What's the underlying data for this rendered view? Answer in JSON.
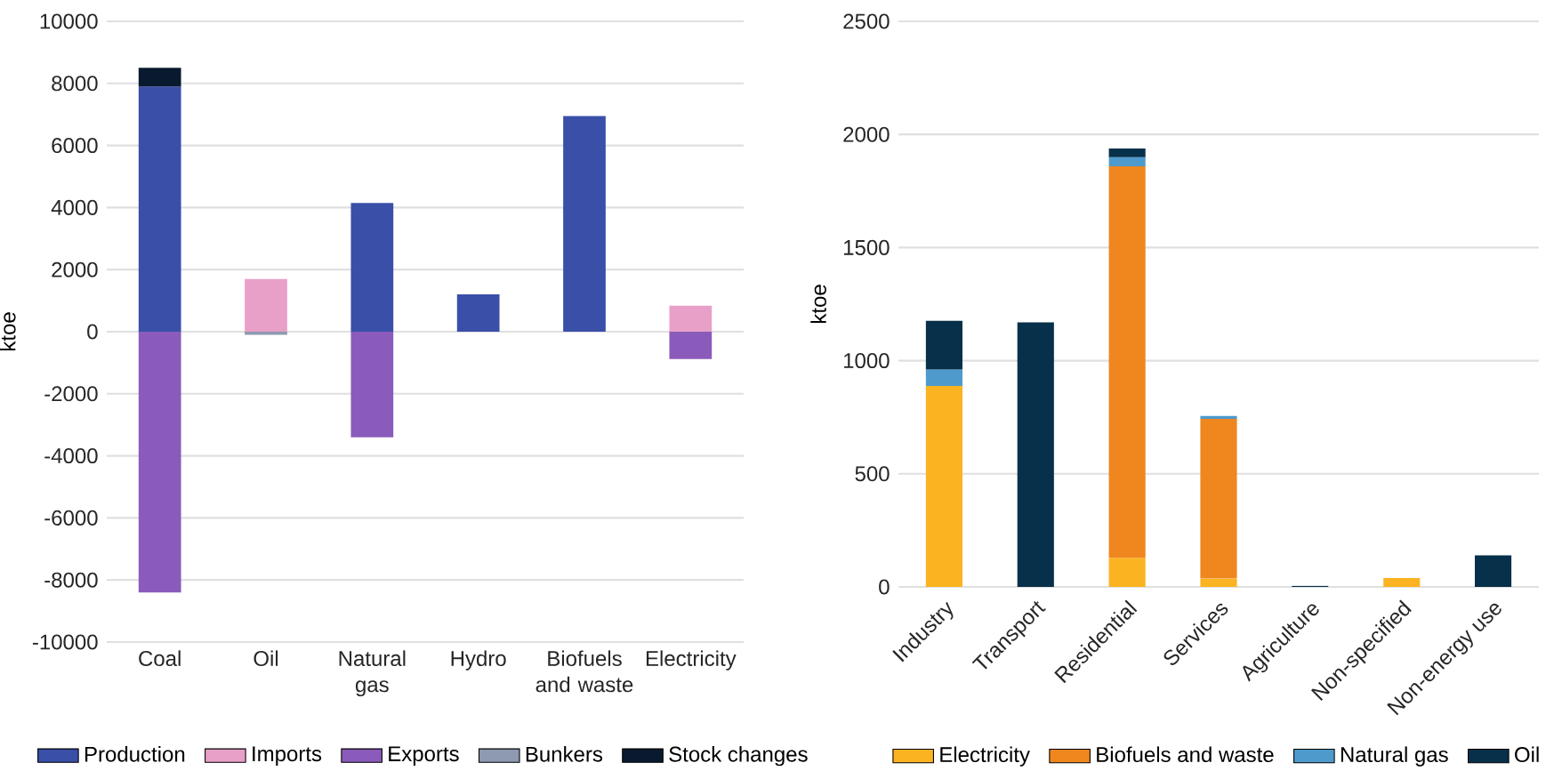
{
  "chart_data": [
    {
      "type": "bar",
      "stacked": true,
      "ylabel": "ktoe",
      "categories": [
        "Coal",
        "Oil",
        "Natural gas",
        "Hydro",
        "Biofuels and waste",
        "Electricity"
      ],
      "ylim": [
        -10000,
        10000
      ],
      "yticks": [
        -10000,
        -8000,
        -6000,
        -4000,
        -2000,
        0,
        2000,
        4000,
        6000,
        8000,
        10000
      ],
      "grid": "y",
      "legend": "bottom",
      "series": [
        {
          "name": "Production",
          "color": "#3a4fa8",
          "values": [
            7900,
            null,
            4150,
            1200,
            6950,
            null
          ]
        },
        {
          "name": "Imports",
          "color": "#e8a0c8",
          "values": [
            null,
            1700,
            null,
            null,
            null,
            840
          ]
        },
        {
          "name": "Exports",
          "color": "#8a5bba",
          "values": [
            -8400,
            null,
            -3400,
            null,
            null,
            -880
          ]
        },
        {
          "name": "Bunkers",
          "color": "#8e9ab0",
          "values": [
            null,
            -100,
            null,
            null,
            null,
            null
          ]
        },
        {
          "name": "Stock changes",
          "color": "#0a1a2e",
          "values": [
            600,
            null,
            null,
            null,
            null,
            null
          ]
        }
      ]
    },
    {
      "type": "bar",
      "stacked": true,
      "ylabel": "ktoe",
      "categories": [
        "Industry",
        "Transport",
        "Residential",
        "Services",
        "Agriculture",
        "Non-specified",
        "Non-energy use"
      ],
      "ylim": [
        0,
        2500
      ],
      "yticks": [
        0,
        500,
        1000,
        1500,
        2000,
        2500
      ],
      "grid": "y",
      "legend": "bottom",
      "series": [
        {
          "name": "Electricity",
          "color": "#fbb321",
          "values": [
            888,
            null,
            129,
            37,
            null,
            39,
            null
          ]
        },
        {
          "name": "Biofuels and waste",
          "color": "#f0861e",
          "values": [
            null,
            null,
            1730,
            706,
            null,
            null,
            null
          ]
        },
        {
          "name": "Natural gas",
          "color": "#4e9acd",
          "values": [
            73,
            null,
            40,
            13,
            null,
            null,
            null
          ]
        },
        {
          "name": "Oil",
          "color": "#07304a",
          "values": [
            215,
            1169,
            39,
            null,
            5,
            null,
            139
          ]
        }
      ]
    }
  ]
}
